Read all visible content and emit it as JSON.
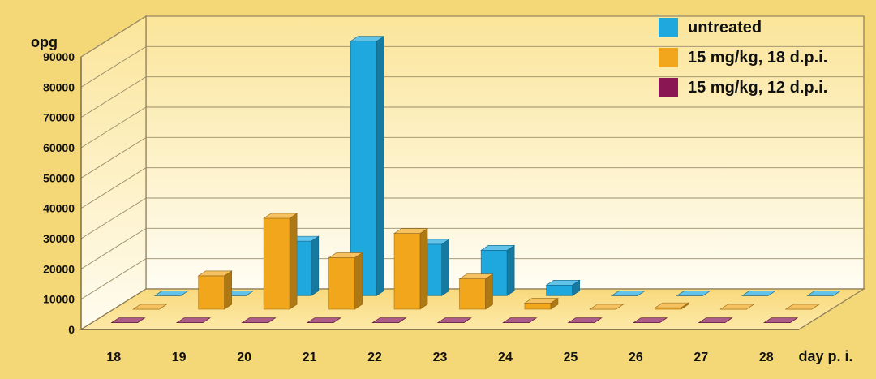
{
  "chart_data": {
    "type": "bar",
    "ylabel": "opg",
    "xlabel": "day p. i.",
    "categories": [
      "18",
      "19",
      "20",
      "21",
      "22",
      "23",
      "24",
      "25",
      "26",
      "27",
      "28"
    ],
    "ylim": [
      0,
      90000
    ],
    "yticks": [
      "0",
      "10000",
      "20000",
      "30000",
      "40000",
      "50000",
      "60000",
      "70000",
      "80000",
      "90000"
    ],
    "grid": true,
    "legend_position": "top-right",
    "series": [
      {
        "name": "untreated",
        "color": "#1ea8de",
        "values": [
          0,
          0,
          18000,
          84000,
          17000,
          15000,
          3500,
          0,
          0,
          0,
          0
        ]
      },
      {
        "name": "15 mg/kg, 18 d.p.i.",
        "color": "#f2a61c",
        "values": [
          0,
          11000,
          30000,
          17000,
          25000,
          10000,
          2000,
          0,
          500,
          0,
          0
        ]
      },
      {
        "name": "15 mg/kg, 12 d.p.i.",
        "color": "#8a1653",
        "values": [
          0,
          0,
          0,
          0,
          0,
          0,
          0,
          0,
          0,
          0,
          0
        ]
      }
    ]
  }
}
